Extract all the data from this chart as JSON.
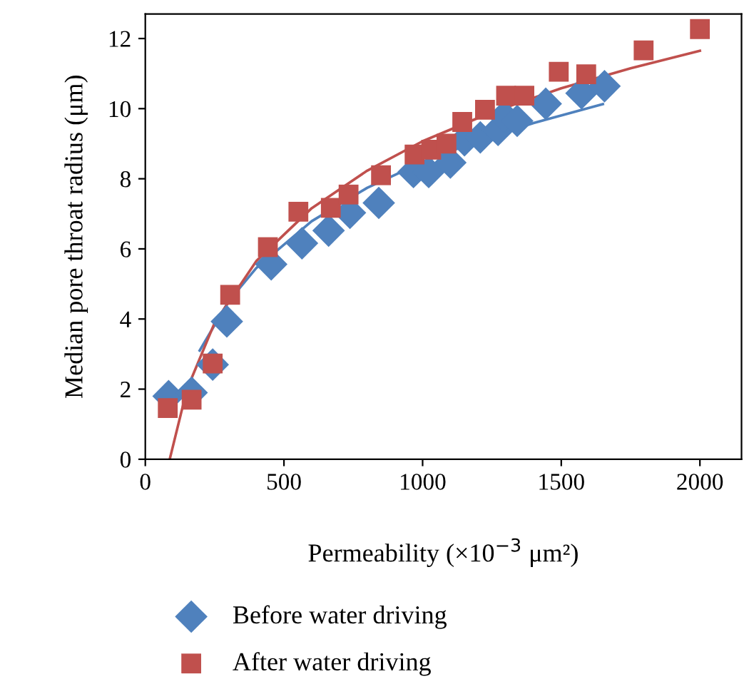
{
  "chart_data": {
    "type": "scatter",
    "xlabel": "Permeability (×10$^{−3}$ μm²)",
    "ylabel": "Median pore throat radius (μm)",
    "xlim": [
      0,
      2150
    ],
    "ylim": [
      0,
      12.7
    ],
    "xticks": [
      0,
      500,
      1000,
      1500,
      2000
    ],
    "yticks": [
      0,
      2,
      4,
      6,
      8,
      10,
      12
    ],
    "grid": false,
    "legend": "bottom left",
    "series": [
      {
        "name": "Before water driving",
        "color": "#4f81bd",
        "marker": "diamond",
        "x": [
          84,
          167,
          243,
          294,
          454,
          565,
          661,
          738,
          842,
          967,
          1022,
          1100,
          1151,
          1208,
          1272,
          1294,
          1341,
          1444,
          1573,
          1656
        ],
        "values": [
          1.8,
          1.9,
          2.7,
          3.93,
          5.56,
          6.16,
          6.52,
          7.03,
          7.31,
          8.19,
          8.19,
          8.46,
          9.1,
          9.18,
          9.39,
          9.78,
          9.65,
          10.14,
          10.44,
          10.64
        ]
      },
      {
        "name": "After water driving",
        "color": "#c0504d",
        "marker": "square",
        "x": [
          81,
          167,
          243,
          306,
          442,
          552,
          669,
          733,
          850,
          971,
          1031,
          1086,
          1143,
          1225,
          1301,
          1367,
          1491,
          1590,
          1797,
          2000
        ],
        "values": [
          1.46,
          1.7,
          2.73,
          4.69,
          6.05,
          7.06,
          7.17,
          7.55,
          8.1,
          8.69,
          8.83,
          9.0,
          9.62,
          9.97,
          10.37,
          10.37,
          11.05,
          10.98,
          11.66,
          12.27
        ]
      },
      {
        "type": "line",
        "color": "#4f81bd",
        "marker": "none",
        "x": [
          196,
          300,
          400,
          600,
          800,
          1000,
          1200,
          1400,
          1650
        ],
        "values": [
          3.1,
          4.5,
          5.45,
          6.79,
          7.74,
          8.48,
          9.08,
          9.59,
          10.13
        ]
      },
      {
        "type": "line",
        "color": "#c0504d",
        "marker": "none",
        "x": [
          88,
          150,
          250,
          400,
          600,
          800,
          1000,
          1250,
          1500,
          1750,
          2000
        ],
        "values": [
          0,
          1.99,
          3.89,
          5.65,
          7.16,
          8.23,
          9.07,
          9.9,
          10.58,
          11.15,
          11.65
        ]
      }
    ]
  }
}
